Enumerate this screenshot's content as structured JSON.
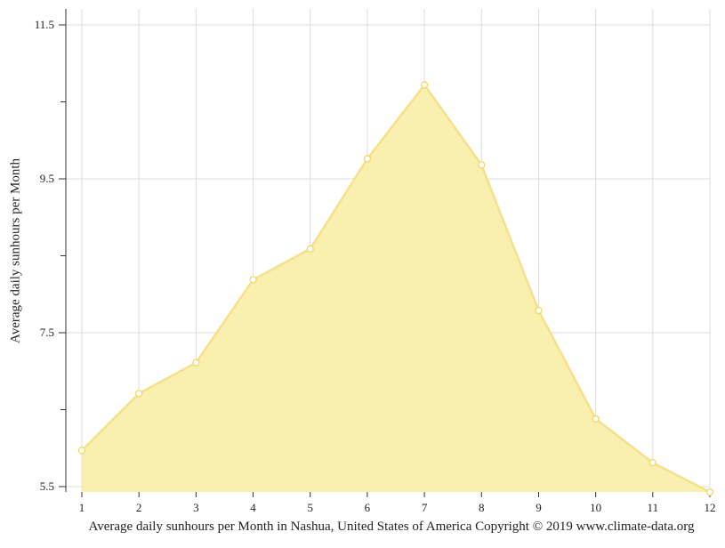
{
  "chart_data": {
    "type": "area",
    "x": [
      1,
      2,
      3,
      4,
      5,
      6,
      7,
      8,
      9,
      10,
      11,
      12
    ],
    "series": [
      {
        "values": [
          5.97,
          6.71,
          7.11,
          8.19,
          8.59,
          9.76,
          10.72,
          9.68,
          7.79,
          6.38,
          5.81,
          5.43
        ]
      }
    ],
    "xlabel": "Average daily sunhours per Month in Nashua, United States of America Copyright © 2019 www.climate-data.org",
    "ylabel": "Average daily sunhours per Month",
    "y_ticks": [
      "5.5",
      "7.5",
      "9.5",
      "11.5"
    ],
    "ylim": [
      5.5,
      11.5
    ],
    "grid": true,
    "colors": {
      "fill": "#f9eeaa",
      "line": "#f6e08a",
      "grid": "#dddddd",
      "marker": "#f0d75a"
    }
  }
}
